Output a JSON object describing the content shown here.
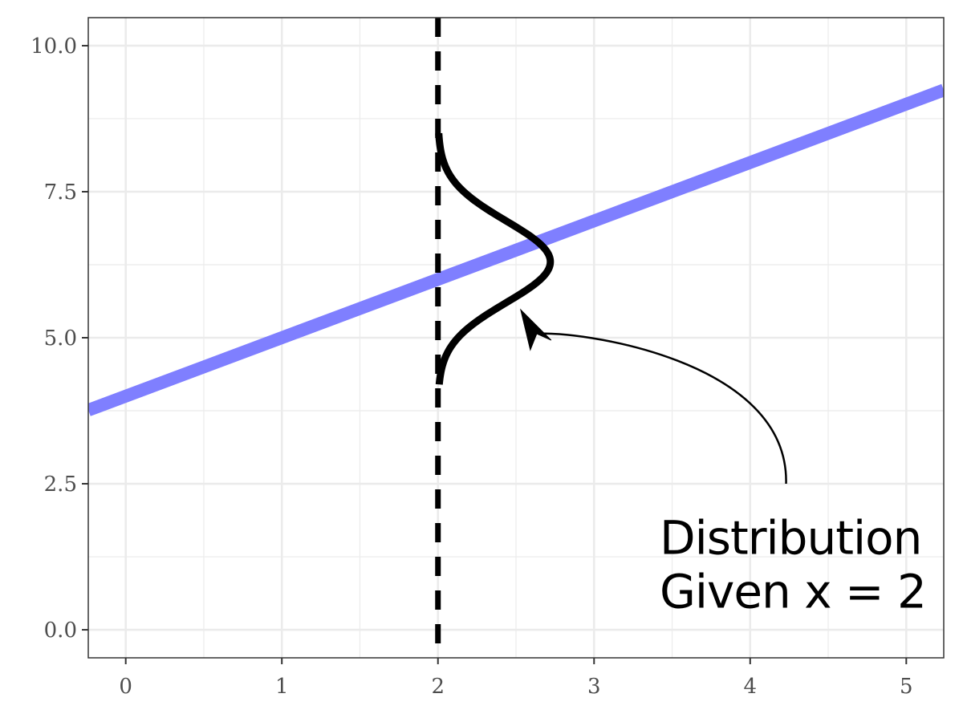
{
  "chart_data": {
    "type": "line",
    "title": "",
    "xlabel": "",
    "ylabel": "",
    "xlim": [
      -0.24,
      5.24
    ],
    "ylim": [
      -0.48,
      10.48
    ],
    "x_ticks": [
      0,
      1,
      2,
      3,
      4,
      5
    ],
    "x_tick_labels": [
      "0",
      "1",
      "2",
      "3",
      "4",
      "5"
    ],
    "y_ticks": [
      0.0,
      2.5,
      5.0,
      7.5,
      10.0
    ],
    "y_tick_labels": [
      "0.0",
      "2.5",
      "5.0",
      "7.5",
      "10.0"
    ],
    "grid": true,
    "regression_line": {
      "intercept": 4.0,
      "slope": 1.0,
      "color": "#7f7fff"
    },
    "vertical_line": {
      "x": 2,
      "style": "dashed",
      "color": "#000000"
    },
    "conditional_distribution": {
      "x": 2,
      "mean": 6.3,
      "sd": 0.7,
      "y_range": [
        4.2,
        8.5
      ],
      "peak_width_x": 0.72,
      "color": "#000000"
    },
    "annotation": {
      "lines": [
        "Distribution",
        "Given x = 2"
      ],
      "text_x": 3.42,
      "text_y_lines": [
        1.3,
        0.38
      ],
      "arrow_from": [
        4.23,
        2.5
      ],
      "arrow_to": [
        2.53,
        5.48
      ]
    },
    "colors": {
      "grid": "#ebebeb",
      "panel_border": "#333333",
      "axis_text": "#4d4d4d"
    }
  }
}
